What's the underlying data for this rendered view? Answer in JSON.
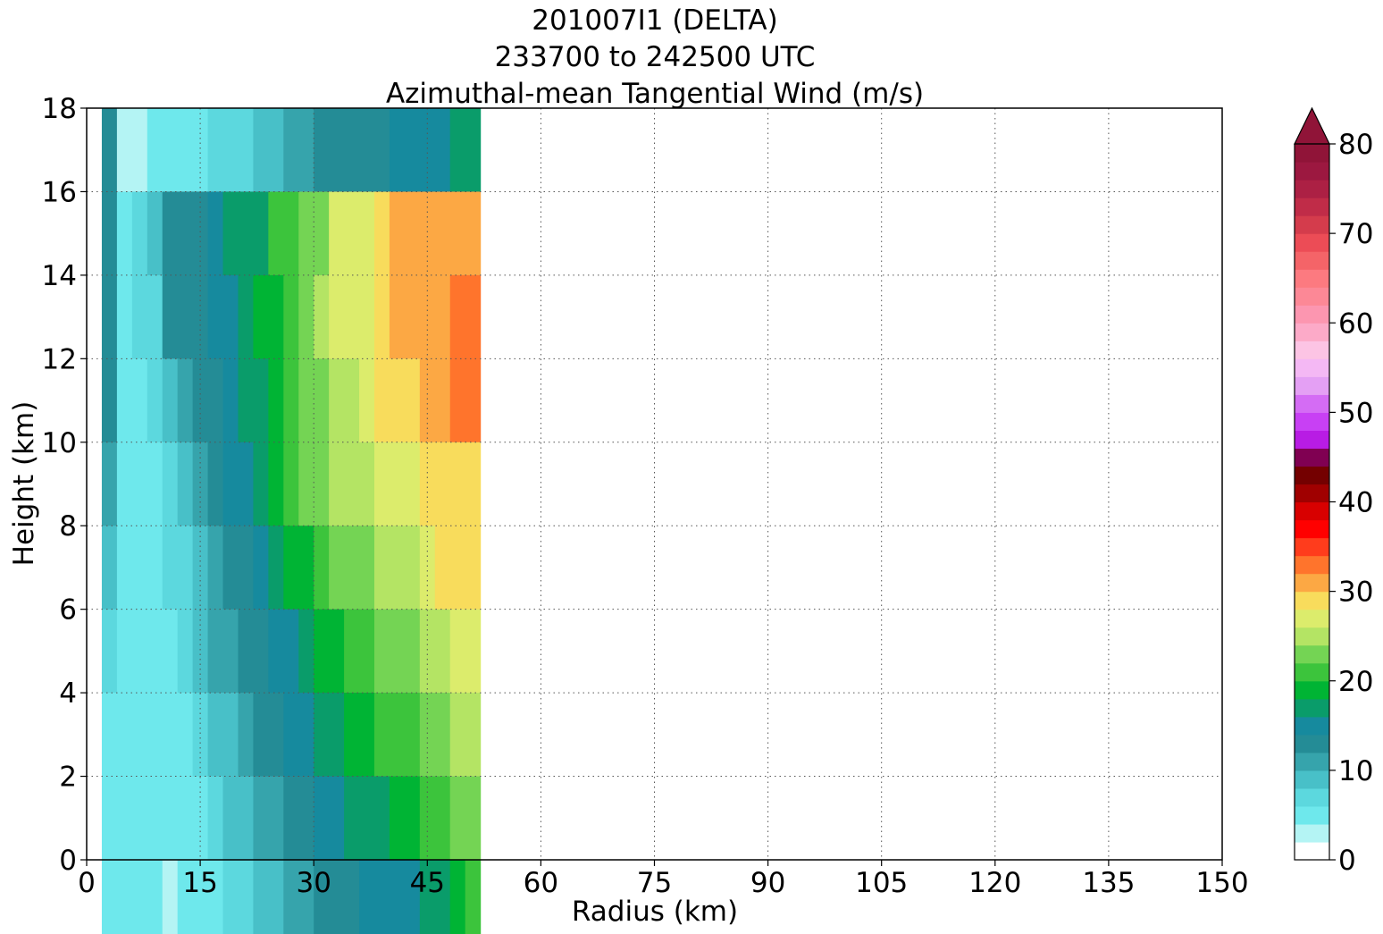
{
  "chart_data": {
    "type": "contourf",
    "title": [
      "201007I1 (DELTA)",
      "233700 to 242500 UTC",
      "Azimuthal-mean Tangential Wind (m/s)"
    ],
    "xlabel": "Radius (km)",
    "ylabel": "Height (km)",
    "xlim": [
      0,
      150
    ],
    "ylim": [
      0,
      18
    ],
    "xticks": [
      0,
      15,
      30,
      45,
      60,
      75,
      90,
      105,
      120,
      135,
      150
    ],
    "yticks": [
      0,
      2,
      4,
      6,
      8,
      10,
      12,
      14,
      16,
      18
    ],
    "grid": true,
    "grid_style": "dotted",
    "colorbar": {
      "range": [
        0,
        80
      ],
      "extend": "max",
      "ticks": [
        0,
        10,
        20,
        30,
        40,
        50,
        60,
        70,
        80
      ],
      "level_step": 2,
      "colors": [
        "#ffffff",
        "#b4f4f4",
        "#6ee8ec",
        "#5cd8de",
        "#48c0c8",
        "#36a4ac",
        "#248c96",
        "#168a9e",
        "#0a9c6a",
        "#00b434",
        "#3cc43c",
        "#74d454",
        "#b4e464",
        "#dcec6c",
        "#f8dc5c",
        "#fca844",
        "#ff742c",
        "#ff3c1c",
        "#ff0000",
        "#d80000",
        "#a00000",
        "#740000",
        "#800052",
        "#b81ce4",
        "#c840f4",
        "#d46cf4",
        "#e4a0f4",
        "#f4b8f4",
        "#fcc4e4",
        "#fcaac8",
        "#fc96b0",
        "#fc8896",
        "#fc7a80",
        "#f46468",
        "#ec4c56",
        "#d43c4c",
        "#c02c48",
        "#ac2044",
        "#9c1840",
        "#901438"
      ]
    },
    "cells": [
      [
        0,
        6,
        1,
        1,
        2,
        2,
        2,
        2,
        3,
        3,
        3,
        4,
        4,
        5,
        5,
        6,
        6,
        6,
        6,
        6,
        7,
        7,
        7,
        7,
        8,
        8,
        0,
        0,
        0,
        0,
        0,
        0,
        0,
        0,
        0,
        0,
        0
      ],
      [
        0,
        6,
        2,
        3,
        4,
        6,
        6,
        6,
        7,
        8,
        8,
        8,
        10,
        10,
        11,
        11,
        13,
        13,
        13,
        14,
        15,
        15,
        15,
        15,
        15,
        15,
        0,
        0,
        0,
        0,
        0,
        0,
        0,
        0,
        0,
        0,
        0
      ],
      [
        0,
        6,
        2,
        3,
        3,
        6,
        6,
        6,
        7,
        7,
        8,
        9,
        9,
        10,
        11,
        12,
        13,
        13,
        13,
        14,
        15,
        15,
        15,
        15,
        16,
        16,
        0,
        0,
        0,
        0,
        0,
        0,
        0,
        0,
        0,
        0,
        0
      ],
      [
        0,
        6,
        2,
        2,
        3,
        4,
        5,
        6,
        6,
        7,
        8,
        8,
        9,
        10,
        11,
        11,
        12,
        12,
        13,
        14,
        14,
        14,
        15,
        15,
        16,
        16,
        0,
        0,
        0,
        0,
        0,
        0,
        0,
        0,
        0,
        0,
        0
      ],
      [
        0,
        5,
        2,
        2,
        2,
        3,
        4,
        5,
        6,
        7,
        7,
        8,
        9,
        10,
        11,
        11,
        12,
        12,
        12,
        13,
        13,
        13,
        14,
        14,
        14,
        14,
        0,
        0,
        0,
        0,
        0,
        0,
        0,
        0,
        0,
        0,
        0
      ],
      [
        0,
        4,
        2,
        2,
        2,
        3,
        3,
        4,
        5,
        6,
        6,
        7,
        8,
        9,
        9,
        10,
        11,
        11,
        11,
        12,
        12,
        12,
        13,
        14,
        14,
        14,
        0,
        0,
        0,
        0,
        0,
        0,
        0,
        0,
        0,
        0,
        0
      ],
      [
        0,
        3,
        2,
        2,
        2,
        2,
        3,
        4,
        5,
        5,
        6,
        6,
        7,
        7,
        8,
        9,
        9,
        10,
        10,
        11,
        11,
        11,
        12,
        12,
        13,
        13,
        0,
        0,
        0,
        0,
        0,
        0,
        0,
        0,
        0,
        0,
        0
      ],
      [
        0,
        2,
        2,
        2,
        2,
        2,
        2,
        3,
        4,
        4,
        5,
        6,
        6,
        7,
        7,
        8,
        8,
        9,
        9,
        10,
        10,
        10,
        11,
        11,
        12,
        12,
        0,
        0,
        0,
        0,
        0,
        0,
        0,
        0,
        0,
        0,
        0
      ],
      [
        0,
        2,
        2,
        2,
        2,
        2,
        2,
        2,
        3,
        4,
        4,
        5,
        5,
        6,
        6,
        7,
        7,
        8,
        8,
        8,
        9,
        9,
        10,
        10,
        11,
        11,
        0,
        0,
        0,
        0,
        0,
        0,
        0,
        0,
        0,
        0,
        0
      ],
      [
        0,
        2,
        2,
        2,
        2,
        1,
        2,
        2,
        2,
        3,
        3,
        4,
        4,
        5,
        5,
        6,
        6,
        6,
        7,
        7,
        7,
        7,
        8,
        8,
        9,
        10,
        0,
        0,
        0,
        0,
        0,
        0,
        0,
        0,
        0,
        0,
        0
      ]
    ]
  }
}
